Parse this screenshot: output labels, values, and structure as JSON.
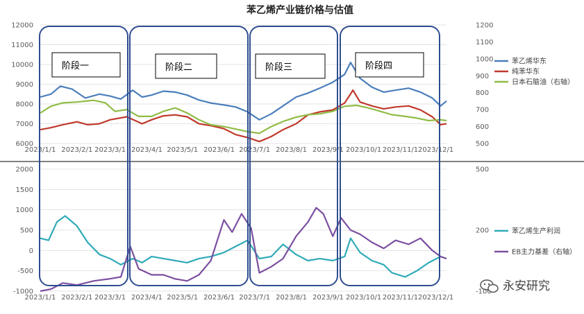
{
  "title": "苯乙烯产业链价格与估值",
  "stages": [
    "阶段一",
    "阶段二",
    "阶段三",
    "阶段四"
  ],
  "watermark": "永安研究",
  "colors": {
    "styrene": "#4a7ebb",
    "benzene": "#c0392b",
    "naphtha": "#8fbc45",
    "profit": "#2eaab8",
    "basis": "#7b4fa0",
    "stage_box": "#2e4d8f"
  },
  "chart_data": [
    {
      "type": "line",
      "x_ticks": [
        "2023/1/1",
        "2023/2/1",
        "2023/3/1",
        "2023/4/1",
        "2023/5/1",
        "2023/6/1",
        "2023/7/1",
        "2023/8/1",
        "2023/9/1",
        "2023/10/1",
        "2023/11/1",
        "2023/12/1"
      ],
      "xlim": [
        "2023-01-01",
        "2023-12-10"
      ],
      "ylim": [
        6000,
        12000
      ],
      "y_ticks": [
        "6000",
        "7000",
        "8000",
        "9000",
        "10000",
        "11000",
        "12000"
      ],
      "y2lim": [
        500,
        1200
      ],
      "y2_ticks": [
        "500",
        "600",
        "700",
        "800",
        "900",
        "1000",
        "1100",
        "1200"
      ],
      "legend": "right",
      "series": [
        {
          "name": "苯乙烯华东",
          "color_key": "styrene",
          "axis": "left",
          "points": [
            [
              "2023-01-01",
              8350
            ],
            [
              "2023-01-10",
              8500
            ],
            [
              "2023-01-18",
              8900
            ],
            [
              "2023-01-28",
              8750
            ],
            [
              "2023-02-08",
              8300
            ],
            [
              "2023-02-20",
              8500
            ],
            [
              "2023-03-01",
              8400
            ],
            [
              "2023-03-10",
              8250
            ],
            [
              "2023-03-20",
              8700
            ],
            [
              "2023-03-28",
              8350
            ],
            [
              "2023-04-05",
              8450
            ],
            [
              "2023-04-15",
              8650
            ],
            [
              "2023-04-25",
              8600
            ],
            [
              "2023-05-05",
              8450
            ],
            [
              "2023-05-15",
              8200
            ],
            [
              "2023-05-25",
              8050
            ],
            [
              "2023-06-05",
              7950
            ],
            [
              "2023-06-15",
              7850
            ],
            [
              "2023-06-25",
              7600
            ],
            [
              "2023-07-05",
              7200
            ],
            [
              "2023-07-15",
              7500
            ],
            [
              "2023-07-25",
              7900
            ],
            [
              "2023-08-05",
              8350
            ],
            [
              "2023-08-15",
              8550
            ],
            [
              "2023-08-25",
              8800
            ],
            [
              "2023-09-05",
              9100
            ],
            [
              "2023-09-15",
              9500
            ],
            [
              "2023-09-20",
              10100
            ],
            [
              "2023-09-28",
              9300
            ],
            [
              "2023-10-08",
              8850
            ],
            [
              "2023-10-18",
              8600
            ],
            [
              "2023-10-28",
              8700
            ],
            [
              "2023-11-08",
              8800
            ],
            [
              "2023-11-18",
              8600
            ],
            [
              "2023-11-28",
              8300
            ],
            [
              "2023-12-05",
              7900
            ],
            [
              "2023-12-10",
              8150
            ]
          ]
        },
        {
          "name": "纯苯华东",
          "color_key": "benzene",
          "axis": "left",
          "points": [
            [
              "2023-01-01",
              6700
            ],
            [
              "2023-01-10",
              6800
            ],
            [
              "2023-01-20",
              6950
            ],
            [
              "2023-02-01",
              7100
            ],
            [
              "2023-02-10",
              6950
            ],
            [
              "2023-02-20",
              7000
            ],
            [
              "2023-03-01",
              7200
            ],
            [
              "2023-03-15",
              7350
            ],
            [
              "2023-03-28",
              7000
            ],
            [
              "2023-04-05",
              7200
            ],
            [
              "2023-04-15",
              7400
            ],
            [
              "2023-04-25",
              7450
            ],
            [
              "2023-05-05",
              7350
            ],
            [
              "2023-05-15",
              7000
            ],
            [
              "2023-05-25",
              6900
            ],
            [
              "2023-06-05",
              6750
            ],
            [
              "2023-06-15",
              6450
            ],
            [
              "2023-06-25",
              6300
            ],
            [
              "2023-07-05",
              6100
            ],
            [
              "2023-07-15",
              6350
            ],
            [
              "2023-07-25",
              6700
            ],
            [
              "2023-08-05",
              7000
            ],
            [
              "2023-08-15",
              7450
            ],
            [
              "2023-08-25",
              7600
            ],
            [
              "2023-09-05",
              7700
            ],
            [
              "2023-09-15",
              8050
            ],
            [
              "2023-09-22",
              8700
            ],
            [
              "2023-09-28",
              8100
            ],
            [
              "2023-10-08",
              7900
            ],
            [
              "2023-10-18",
              7750
            ],
            [
              "2023-10-28",
              7850
            ],
            [
              "2023-11-08",
              7900
            ],
            [
              "2023-11-18",
              7700
            ],
            [
              "2023-11-28",
              7350
            ],
            [
              "2023-12-05",
              6950
            ],
            [
              "2023-12-10",
              7000
            ]
          ]
        },
        {
          "name": "日本石脑油（右轴）",
          "color_key": "naphtha",
          "axis": "right",
          "points": [
            [
              "2023-01-01",
              680
            ],
            [
              "2023-01-10",
              720
            ],
            [
              "2023-01-20",
              740
            ],
            [
              "2023-02-01",
              745
            ],
            [
              "2023-02-15",
              755
            ],
            [
              "2023-02-25",
              740
            ],
            [
              "2023-03-05",
              690
            ],
            [
              "2023-03-15",
              700
            ],
            [
              "2023-03-25",
              660
            ],
            [
              "2023-04-05",
              660
            ],
            [
              "2023-04-15",
              690
            ],
            [
              "2023-04-25",
              710
            ],
            [
              "2023-05-05",
              680
            ],
            [
              "2023-05-15",
              640
            ],
            [
              "2023-05-25",
              610
            ],
            [
              "2023-06-05",
              600
            ],
            [
              "2023-06-15",
              585
            ],
            [
              "2023-06-25",
              570
            ],
            [
              "2023-07-05",
              560
            ],
            [
              "2023-07-15",
              600
            ],
            [
              "2023-07-25",
              630
            ],
            [
              "2023-08-05",
              655
            ],
            [
              "2023-08-15",
              670
            ],
            [
              "2023-08-25",
              675
            ],
            [
              "2023-09-05",
              690
            ],
            [
              "2023-09-15",
              720
            ],
            [
              "2023-09-25",
              725
            ],
            [
              "2023-10-05",
              710
            ],
            [
              "2023-10-15",
              690
            ],
            [
              "2023-10-25",
              670
            ],
            [
              "2023-11-05",
              660
            ],
            [
              "2023-11-15",
              650
            ],
            [
              "2023-11-25",
              635
            ],
            [
              "2023-12-05",
              640
            ],
            [
              "2023-12-10",
              635
            ]
          ]
        }
      ]
    },
    {
      "type": "line",
      "x_ticks": [
        "2023/1/1",
        "2023/2/1",
        "2023/3/1",
        "2023/4/1",
        "2023/5/1",
        "2023/6/1",
        "2023/7/1",
        "2023/8/1",
        "2023/9/1",
        "2023/10/1",
        "2023/11/1",
        "2023/12/1"
      ],
      "xlim": [
        "2023-01-01",
        "2023-12-10"
      ],
      "ylim": [
        -1000,
        2000
      ],
      "y_ticks": [
        "-1000",
        "-500",
        "0",
        "500",
        "1000",
        "1500",
        "2000"
      ],
      "y2lim": [
        -100,
        500
      ],
      "y2_ticks": [
        "-100",
        "200",
        "500"
      ],
      "legend": "right",
      "series": [
        {
          "name": "苯乙烯生产利润",
          "color_key": "profit",
          "axis": "left",
          "points": [
            [
              "2023-01-01",
              300
            ],
            [
              "2023-01-08",
              250
            ],
            [
              "2023-01-15",
              700
            ],
            [
              "2023-01-22",
              850
            ],
            [
              "2023-02-01",
              600
            ],
            [
              "2023-02-10",
              200
            ],
            [
              "2023-02-20",
              -100
            ],
            [
              "2023-03-01",
              -200
            ],
            [
              "2023-03-10",
              -350
            ],
            [
              "2023-03-20",
              -200
            ],
            [
              "2023-03-28",
              -300
            ],
            [
              "2023-04-05",
              -150
            ],
            [
              "2023-04-15",
              -200
            ],
            [
              "2023-04-25",
              -250
            ],
            [
              "2023-05-05",
              -300
            ],
            [
              "2023-05-15",
              -200
            ],
            [
              "2023-05-25",
              -150
            ],
            [
              "2023-06-05",
              -50
            ],
            [
              "2023-06-15",
              100
            ],
            [
              "2023-06-25",
              250
            ],
            [
              "2023-07-05",
              -200
            ],
            [
              "2023-07-15",
              -150
            ],
            [
              "2023-07-25",
              150
            ],
            [
              "2023-08-05",
              -100
            ],
            [
              "2023-08-15",
              -250
            ],
            [
              "2023-08-25",
              -200
            ],
            [
              "2023-09-05",
              -250
            ],
            [
              "2023-09-15",
              -150
            ],
            [
              "2023-09-20",
              300
            ],
            [
              "2023-09-28",
              -50
            ],
            [
              "2023-10-08",
              -250
            ],
            [
              "2023-10-18",
              -350
            ],
            [
              "2023-10-25",
              -550
            ],
            [
              "2023-11-05",
              -650
            ],
            [
              "2023-11-15",
              -500
            ],
            [
              "2023-11-25",
              -300
            ],
            [
              "2023-12-05",
              -150
            ],
            [
              "2023-12-10",
              -200
            ]
          ]
        },
        {
          "name": "EB主力基差（右轴）",
          "color_key": "basis",
          "axis": "right",
          "points": [
            [
              "2023-01-01",
              -100
            ],
            [
              "2023-01-10",
              -90
            ],
            [
              "2023-01-20",
              -60
            ],
            [
              "2023-02-01",
              -70
            ],
            [
              "2023-02-15",
              -50
            ],
            [
              "2023-02-28",
              -40
            ],
            [
              "2023-03-10",
              -30
            ],
            [
              "2023-03-18",
              120
            ],
            [
              "2023-03-25",
              10
            ],
            [
              "2023-04-05",
              -20
            ],
            [
              "2023-04-15",
              -20
            ],
            [
              "2023-04-25",
              -40
            ],
            [
              "2023-05-05",
              -50
            ],
            [
              "2023-05-15",
              -20
            ],
            [
              "2023-05-25",
              50
            ],
            [
              "2023-06-05",
              250
            ],
            [
              "2023-06-12",
              190
            ],
            [
              "2023-06-20",
              280
            ],
            [
              "2023-06-28",
              210
            ],
            [
              "2023-07-05",
              -10
            ],
            [
              "2023-07-15",
              20
            ],
            [
              "2023-07-25",
              60
            ],
            [
              "2023-08-05",
              170
            ],
            [
              "2023-08-15",
              240
            ],
            [
              "2023-08-22",
              310
            ],
            [
              "2023-08-28",
              280
            ],
            [
              "2023-09-05",
              170
            ],
            [
              "2023-09-12",
              260
            ],
            [
              "2023-09-20",
              200
            ],
            [
              "2023-09-28",
              180
            ],
            [
              "2023-10-08",
              140
            ],
            [
              "2023-10-18",
              110
            ],
            [
              "2023-10-28",
              150
            ],
            [
              "2023-11-08",
              130
            ],
            [
              "2023-11-18",
              160
            ],
            [
              "2023-11-28",
              100
            ],
            [
              "2023-12-05",
              70
            ],
            [
              "2023-12-10",
              60
            ]
          ]
        }
      ]
    }
  ]
}
